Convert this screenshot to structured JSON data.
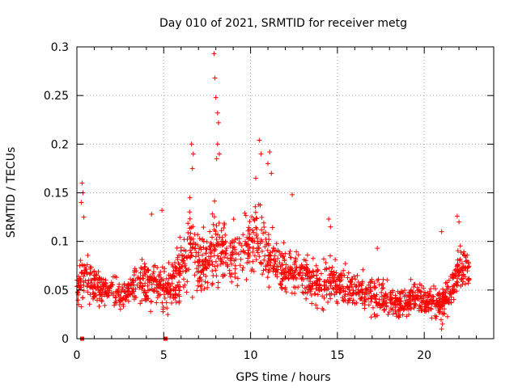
{
  "chart_data": {
    "type": "scatter",
    "title": "Day 010 of 2021, SRMTID for receiver metg",
    "xlabel": "GPS time / hours",
    "ylabel": "SRMTID / TECUs",
    "xlim": [
      0,
      24
    ],
    "ylim": [
      0,
      0.3
    ],
    "x_ticks": [
      0,
      5,
      10,
      15,
      20
    ],
    "x_tick_labels": [
      "0",
      "5",
      "10",
      "15",
      "20"
    ],
    "y_ticks": [
      0,
      0.05,
      0.1,
      0.15,
      0.2,
      0.25,
      0.3
    ],
    "y_tick_labels": [
      "0",
      "0.05",
      "0.1",
      "0.15",
      "0.2",
      "0.25",
      "0.3"
    ],
    "grid": true,
    "marker": "+",
    "series_color": "#ff0000",
    "zero_markers_x": [
      0.3,
      5.1
    ],
    "profile": {
      "hours": [
        0,
        0.5,
        1,
        1.5,
        2,
        2.5,
        3,
        3.5,
        4,
        4.5,
        5,
        5.5,
        6,
        6.5,
        7,
        7.5,
        8,
        8.5,
        9,
        9.5,
        10,
        10.5,
        11,
        11.5,
        12,
        12.5,
        13,
        13.5,
        14,
        14.5,
        15,
        15.5,
        16,
        16.5,
        17,
        17.5,
        18,
        18.5,
        19,
        19.5,
        20,
        20.5,
        21,
        21.5,
        22,
        22.5
      ],
      "median": [
        0.055,
        0.06,
        0.055,
        0.05,
        0.05,
        0.045,
        0.05,
        0.055,
        0.055,
        0.055,
        0.05,
        0.055,
        0.075,
        0.09,
        0.08,
        0.08,
        0.095,
        0.09,
        0.085,
        0.085,
        0.1,
        0.1,
        0.085,
        0.075,
        0.07,
        0.07,
        0.065,
        0.06,
        0.055,
        0.06,
        0.055,
        0.05,
        0.05,
        0.05,
        0.045,
        0.045,
        0.04,
        0.035,
        0.04,
        0.045,
        0.04,
        0.04,
        0.035,
        0.05,
        0.07,
        0.07
      ],
      "spread": [
        0.025,
        0.03,
        0.025,
        0.02,
        0.02,
        0.02,
        0.02,
        0.025,
        0.03,
        0.025,
        0.03,
        0.025,
        0.04,
        0.05,
        0.04,
        0.04,
        0.05,
        0.045,
        0.04,
        0.04,
        0.045,
        0.045,
        0.035,
        0.03,
        0.03,
        0.03,
        0.03,
        0.03,
        0.03,
        0.035,
        0.025,
        0.025,
        0.02,
        0.02,
        0.025,
        0.025,
        0.02,
        0.02,
        0.02,
        0.02,
        0.02,
        0.02,
        0.02,
        0.025,
        0.03,
        0.025
      ]
    },
    "outliers": [
      {
        "x": 0.25,
        "y": 0.14
      },
      {
        "x": 0.3,
        "y": 0.16
      },
      {
        "x": 0.35,
        "y": 0.15
      },
      {
        "x": 0.4,
        "y": 0.125
      },
      {
        "x": 4.3,
        "y": 0.128
      },
      {
        "x": 4.9,
        "y": 0.132
      },
      {
        "x": 6.6,
        "y": 0.2
      },
      {
        "x": 6.7,
        "y": 0.19
      },
      {
        "x": 6.65,
        "y": 0.175
      },
      {
        "x": 7.9,
        "y": 0.293
      },
      {
        "x": 7.95,
        "y": 0.268
      },
      {
        "x": 8.0,
        "y": 0.248
      },
      {
        "x": 8.1,
        "y": 0.232
      },
      {
        "x": 8.15,
        "y": 0.222
      },
      {
        "x": 8.1,
        "y": 0.2
      },
      {
        "x": 8.2,
        "y": 0.19
      },
      {
        "x": 8.05,
        "y": 0.185
      },
      {
        "x": 10.3,
        "y": 0.165
      },
      {
        "x": 10.5,
        "y": 0.204
      },
      {
        "x": 10.6,
        "y": 0.19
      },
      {
        "x": 11.1,
        "y": 0.192
      },
      {
        "x": 11.0,
        "y": 0.18
      },
      {
        "x": 11.2,
        "y": 0.17
      },
      {
        "x": 12.4,
        "y": 0.148
      },
      {
        "x": 14.5,
        "y": 0.123
      },
      {
        "x": 14.6,
        "y": 0.115
      },
      {
        "x": 17.3,
        "y": 0.093
      },
      {
        "x": 21.0,
        "y": 0.01
      },
      {
        "x": 21.05,
        "y": 0.015
      },
      {
        "x": 21.0,
        "y": 0.11
      },
      {
        "x": 21.9,
        "y": 0.126
      },
      {
        "x": 22.0,
        "y": 0.12
      }
    ]
  }
}
